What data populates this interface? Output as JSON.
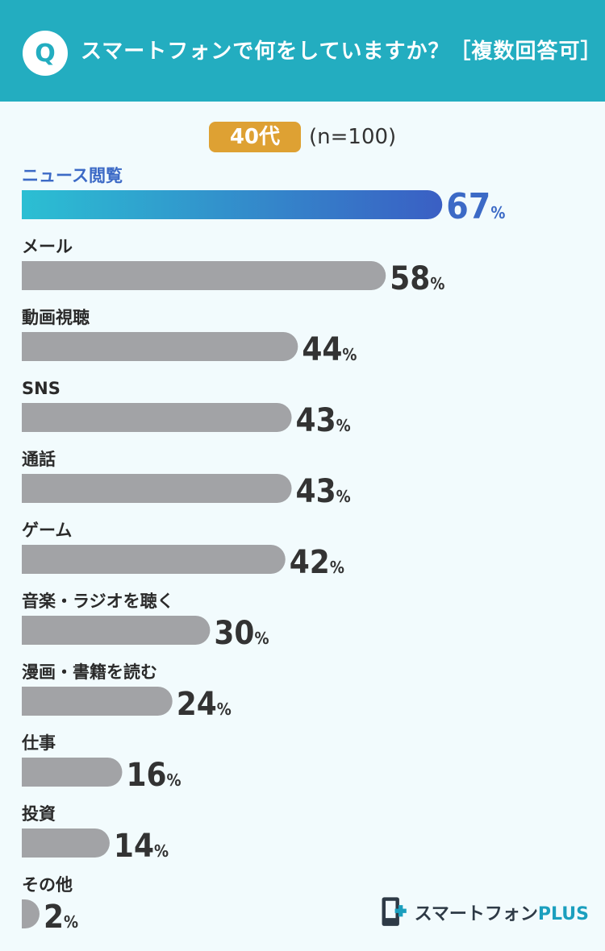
{
  "header": {
    "badge": "Q",
    "question": "スマートフォンで何をしていますか？［複数回答可］"
  },
  "group": {
    "age_label": "40代",
    "sample": "(n=100)"
  },
  "chart_data": {
    "type": "bar",
    "orientation": "horizontal",
    "categories": [
      "ニュース閲覧",
      "メール",
      "動画視聴",
      "SNS",
      "通話",
      "ゲーム",
      "音楽・ラジオを聴く",
      "漫画・書籍を読む",
      "仕事",
      "投資",
      "その他"
    ],
    "values": [
      67,
      58,
      44,
      43,
      43,
      42,
      30,
      24,
      16,
      14,
      2
    ],
    "unit": "%",
    "highlight_index": 0,
    "colors": {
      "highlight_start": "#2bbfd3",
      "highlight_end": "#3a5fc4",
      "highlight_text": "#3c6ac6",
      "bar": "#a2a3a6",
      "value_text": "#333333",
      "label_text": "#2a2a2a"
    }
  },
  "logo": {
    "icon": "smartphone-plus-logo-icon",
    "name": "スマートフォン",
    "suffix": "PLUS"
  }
}
